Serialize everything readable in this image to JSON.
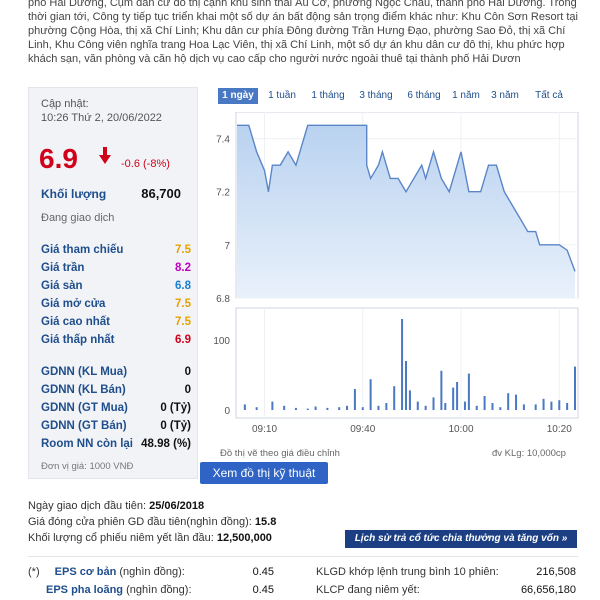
{
  "intro": "phố Hải Dương, Cụm dân cư đô thị cạnh khu sinh thái Âu Cơ, phường Ngọc Châu, thành phố Hải Dương. Trong thời gian tới, Công ty tiếp tục triển khai một số dự án bất động sản trọng điểm khác như: Khu Côn Sơn Resort tại phường Cộng Hòa, thị xã Chí Linh; Khu dân cư phía Đông đường Trần Hưng Đạo, phường Sao Đỏ, thị xã Chí Linh, Khu Công viên nghĩa trang Hoa Lạc Viên, thị xã Chí Linh, một số dự án khu dân cư đô thị, khu phức hợp khách sạn, văn phòng và căn hộ dịch vụ cao cấp cho người nước ngoài thuê tại thành phố Hải Dươn",
  "quote": {
    "updated_label": "Cập nhật:",
    "updated_time": "10:26 Thứ 2, 20/06/2022",
    "price": "6.9",
    "change": "-0.6 (-8%)",
    "volume_label": "Khối lượng",
    "volume_value": "86,700",
    "status": "Đang giao dịch",
    "rows": [
      {
        "label": "Giá tham chiếu",
        "value": "7.5",
        "color": "#e6a100"
      },
      {
        "label": "Giá trần",
        "value": "8.2",
        "color": "#c000c0"
      },
      {
        "label": "Giá sàn",
        "value": "6.8",
        "color": "#1a7fd4"
      },
      {
        "label": "Giá mở cửa",
        "value": "7.5",
        "color": "#e6a100"
      },
      {
        "label": "Giá cao nhất",
        "value": "7.5",
        "color": "#e6a100"
      },
      {
        "label": "Giá thấp nhất",
        "value": "6.9",
        "color": "#d0021b"
      }
    ],
    "foreign": [
      {
        "label": "GDNN (KL Mua)",
        "value": "0"
      },
      {
        "label": "GDNN (KL Bán)",
        "value": "0"
      },
      {
        "label": "GDNN (GT Mua)",
        "value": "0 (Tỷ)"
      },
      {
        "label": "GDNN (GT Bán)",
        "value": "0 (Tỷ)"
      },
      {
        "label": "Room NN còn lại",
        "value": "48.98 (%)"
      }
    ],
    "unit_note": "Đơn vị giá: 1000 VNĐ"
  },
  "tabs": [
    "1 ngày",
    "1 tuần",
    "1 tháng",
    "3 tháng",
    "6 tháng",
    "1 năm",
    "3 năm",
    "Tất cả"
  ],
  "chart_data": {
    "type": "area",
    "price_y_ticks": [
      "7.4",
      "7.2",
      "7",
      "6.8"
    ],
    "price_ylim": [
      6.8,
      7.5
    ],
    "price": [
      [
        0,
        7.45
      ],
      [
        6,
        7.45
      ],
      [
        10,
        7.35
      ],
      [
        14,
        7.28
      ],
      [
        16,
        7.2
      ],
      [
        18,
        7.3
      ],
      [
        22,
        7.3
      ],
      [
        26,
        7.35
      ],
      [
        30,
        7.3
      ],
      [
        36,
        7.45
      ],
      [
        48,
        7.45
      ],
      [
        62,
        7.45
      ],
      [
        66,
        7.45
      ],
      [
        66,
        7.3
      ],
      [
        68,
        7.25
      ],
      [
        72,
        7.3
      ],
      [
        74,
        7.35
      ],
      [
        76,
        7.3
      ],
      [
        78,
        7.25
      ],
      [
        82,
        7.25
      ],
      [
        86,
        7.2
      ],
      [
        90,
        7.25
      ],
      [
        94,
        7.3
      ],
      [
        96,
        7.25
      ],
      [
        100,
        7.35
      ],
      [
        104,
        7.25
      ],
      [
        108,
        7.2
      ],
      [
        114,
        7.35
      ],
      [
        118,
        7.2
      ],
      [
        124,
        7.2
      ],
      [
        128,
        7.3
      ],
      [
        132,
        7.3
      ],
      [
        136,
        7.2
      ],
      [
        140,
        7.15
      ],
      [
        144,
        7.1
      ],
      [
        148,
        7.05
      ],
      [
        152,
        7.05
      ],
      [
        154,
        7.0
      ],
      [
        164,
        7.0
      ],
      [
        168,
        6.98
      ],
      [
        172,
        6.9
      ]
    ],
    "volume_y_ticks": [
      "100",
      "0"
    ],
    "volume_ylim": [
      0,
      140
    ],
    "volume": [
      [
        4,
        8
      ],
      [
        10,
        4
      ],
      [
        18,
        12
      ],
      [
        24,
        6
      ],
      [
        30,
        3
      ],
      [
        36,
        2
      ],
      [
        40,
        5
      ],
      [
        46,
        3
      ],
      [
        52,
        4
      ],
      [
        56,
        6
      ],
      [
        60,
        30
      ],
      [
        64,
        4
      ],
      [
        68,
        44
      ],
      [
        72,
        6
      ],
      [
        76,
        10
      ],
      [
        80,
        34
      ],
      [
        84,
        130
      ],
      [
        86,
        70
      ],
      [
        88,
        28
      ],
      [
        92,
        12
      ],
      [
        96,
        6
      ],
      [
        100,
        18
      ],
      [
        104,
        56
      ],
      [
        106,
        10
      ],
      [
        110,
        32
      ],
      [
        112,
        40
      ],
      [
        116,
        12
      ],
      [
        118,
        52
      ],
      [
        122,
        6
      ],
      [
        126,
        20
      ],
      [
        130,
        10
      ],
      [
        134,
        4
      ],
      [
        138,
        24
      ],
      [
        142,
        22
      ],
      [
        146,
        8
      ],
      [
        152,
        8
      ],
      [
        156,
        16
      ],
      [
        160,
        12
      ],
      [
        164,
        14
      ],
      [
        168,
        10
      ],
      [
        172,
        62
      ]
    ],
    "x_ticks": [
      {
        "label": "09:10",
        "x": 14
      },
      {
        "label": "09:40",
        "x": 64
      },
      {
        "label": "10:00",
        "x": 114
      },
      {
        "label": "10:20",
        "x": 164
      }
    ],
    "xlim": [
      0,
      172
    ],
    "footnote_left": "Đồ thị vẽ theo giá điều chỉnh",
    "footnote_right": "đv KLg: 10,000cp"
  },
  "tech_button": "Xem đồ thị kỹ thuật",
  "info": {
    "first_trade_label": "Ngày giao dịch đầu tiên:",
    "first_trade_value": "25/06/2018",
    "first_close_label": "Giá đóng cửa phiên GD đầu tiên(nghìn đồng):",
    "first_close_value": "15.8",
    "first_volume_label": "Khối lượng cổ phiếu niêm yết lần đầu:",
    "first_volume_value": "12,500,000",
    "history_button": "Lịch sử trả cổ tức chia thưởng và tăng vốn »"
  },
  "bottom": {
    "marker": "(*)",
    "eps_basic_label": "EPS cơ bản",
    "eps_basic_unit": "(nghìn đồng):",
    "eps_basic_value": "0.45",
    "eps_diluted_label": "EPS pha loãng",
    "eps_diluted_unit": "(nghìn đồng):",
    "eps_diluted_value": "0.45",
    "klgd_label": "KLGD khớp lệnh trung bình 10 phiên:",
    "klgd_value": "216,508",
    "klcp_label": "KLCP đang niêm yết:",
    "klcp_value": "66,656,180"
  }
}
